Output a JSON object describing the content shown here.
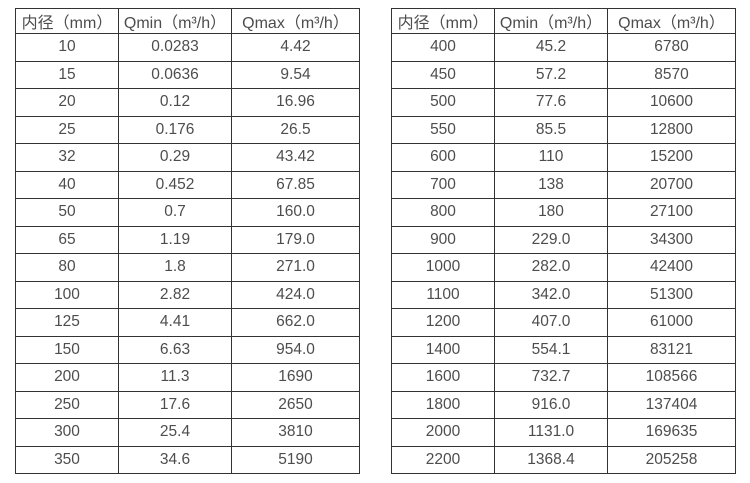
{
  "page": {
    "background_color": "#ffffff",
    "text_color": "#4d4d4d",
    "border_color": "#333333"
  },
  "tables": [
    {
      "id": "flow-table-small-diameters",
      "headers": [
        "内径（mm）",
        "Qmin（m³/h）",
        "Qmax（m³/h）"
      ],
      "rows": [
        [
          "10",
          "0.0283",
          "4.42"
        ],
        [
          "15",
          "0.0636",
          "9.54"
        ],
        [
          "20",
          "0.12",
          "16.96"
        ],
        [
          "25",
          "0.176",
          "26.5"
        ],
        [
          "32",
          "0.29",
          "43.42"
        ],
        [
          "40",
          "0.452",
          "67.85"
        ],
        [
          "50",
          "0.7",
          "160.0"
        ],
        [
          "65",
          "1.19",
          "179.0"
        ],
        [
          "80",
          "1.8",
          "271.0"
        ],
        [
          "100",
          "2.82",
          "424.0"
        ],
        [
          "125",
          "4.41",
          "662.0"
        ],
        [
          "150",
          "6.63",
          "954.0"
        ],
        [
          "200",
          "11.3",
          "1690"
        ],
        [
          "250",
          "17.6",
          "2650"
        ],
        [
          "300",
          "25.4",
          "3810"
        ],
        [
          "350",
          "34.6",
          "5190"
        ]
      ]
    },
    {
      "id": "flow-table-large-diameters",
      "headers": [
        "内径（mm）",
        "Qmin（m³/h）",
        "Qmax（m³/h）"
      ],
      "rows": [
        [
          "400",
          "45.2",
          "6780"
        ],
        [
          "450",
          "57.2",
          "8570"
        ],
        [
          "500",
          "77.6",
          "10600"
        ],
        [
          "550",
          "85.5",
          "12800"
        ],
        [
          "600",
          "110",
          "15200"
        ],
        [
          "700",
          "138",
          "20700"
        ],
        [
          "800",
          "180",
          "27100"
        ],
        [
          "900",
          "229.0",
          "34300"
        ],
        [
          "1000",
          "282.0",
          "42400"
        ],
        [
          "1100",
          "342.0",
          "51300"
        ],
        [
          "1200",
          "407.0",
          "61000"
        ],
        [
          "1400",
          "554.1",
          "83121"
        ],
        [
          "1600",
          "732.7",
          "108566"
        ],
        [
          "1800",
          "916.0",
          "137404"
        ],
        [
          "2000",
          "1131.0",
          "169635"
        ],
        [
          "2200",
          "1368.4",
          "205258"
        ]
      ]
    }
  ]
}
